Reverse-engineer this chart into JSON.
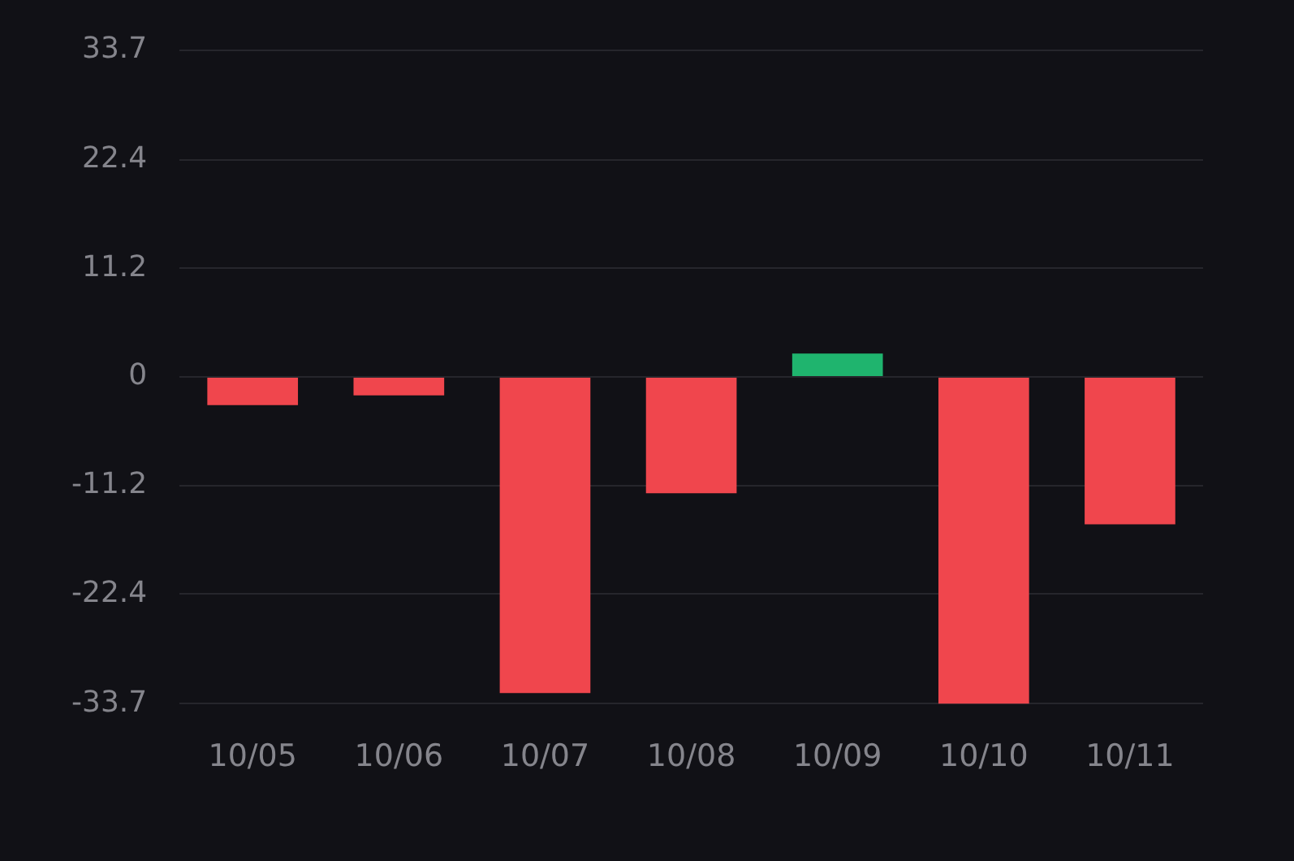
{
  "chart_data": {
    "type": "bar",
    "categories": [
      "10/05",
      "10/06",
      "10/07",
      "10/08",
      "10/09",
      "10/10",
      "10/11"
    ],
    "values": [
      -2.9,
      -1.9,
      -32.6,
      -12.0,
      2.4,
      -33.7,
      -15.2
    ],
    "colors": [
      "#f0464d",
      "#f0464d",
      "#f0464d",
      "#f0464d",
      "#1fb46e",
      "#f0464d",
      "#f0464d"
    ],
    "ylim": [
      -33.7,
      33.7
    ],
    "yticks": [
      -33.7,
      -22.4,
      -11.2,
      0,
      11.2,
      22.4,
      33.7
    ],
    "grid": "y",
    "legend": false
  }
}
